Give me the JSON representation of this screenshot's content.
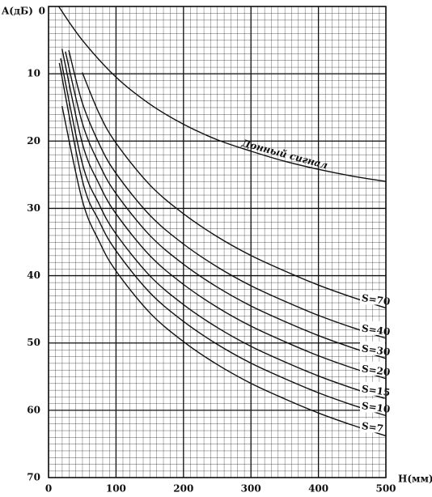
{
  "chart_data": {
    "type": "line",
    "x_label": "H(мм)",
    "y_label": "A(дБ)",
    "xlim": [
      0,
      500
    ],
    "xticks": [
      0,
      100,
      200,
      300,
      400,
      500
    ],
    "ylim": [
      70,
      0
    ],
    "yticks": [
      0,
      10,
      20,
      30,
      40,
      50,
      60,
      70
    ],
    "grid": true,
    "series": [
      {
        "name": "Донный сигнал",
        "color": "#111111",
        "x": [
          15,
          50,
          100,
          150,
          200,
          250,
          300,
          350,
          400,
          450,
          500
        ],
        "values": [
          0,
          5,
          10.5,
          14.5,
          17.5,
          19.8,
          21.5,
          23,
          24.2,
          25.2,
          26
        ]
      },
      {
        "name": "S=70",
        "color": "#111111",
        "x": [
          50,
          75,
          100,
          150,
          200,
          250,
          300,
          350,
          400,
          450,
          500
        ],
        "values": [
          9.8,
          15.9,
          20.3,
          26.5,
          30.8,
          34.2,
          37.0,
          39.3,
          41.4,
          43.2,
          44.8
        ]
      },
      {
        "name": "S=40",
        "color": "#111111",
        "x": [
          30,
          50,
          75,
          100,
          150,
          200,
          250,
          300,
          350,
          400,
          450,
          500
        ],
        "values": [
          6.5,
          14.3,
          20.4,
          24.8,
          31.0,
          35.3,
          38.7,
          41.5,
          43.8,
          45.9,
          47.7,
          49.3
        ]
      },
      {
        "name": "S=30",
        "color": "#111111",
        "x": [
          25,
          50,
          75,
          100,
          150,
          200,
          250,
          300,
          350,
          400,
          450,
          500
        ],
        "values": [
          6.7,
          17.3,
          23.4,
          27.8,
          34.0,
          38.3,
          41.7,
          44.5,
          46.8,
          48.9,
          50.7,
          52.3
        ]
      },
      {
        "name": "S=20",
        "color": "#111111",
        "x": [
          20,
          50,
          75,
          100,
          150,
          200,
          250,
          300,
          350,
          400,
          450,
          500
        ],
        "values": [
          6.3,
          20.3,
          26.4,
          30.8,
          37.0,
          41.3,
          44.7,
          47.5,
          49.8,
          51.9,
          53.7,
          55.3
        ]
      },
      {
        "name": "S=15",
        "color": "#111111",
        "x": [
          18,
          50,
          75,
          100,
          150,
          200,
          250,
          300,
          350,
          400,
          450,
          500
        ],
        "values": [
          7.7,
          23.3,
          29.4,
          33.8,
          40.0,
          44.3,
          47.7,
          50.5,
          52.8,
          54.9,
          56.7,
          58.3
        ]
      },
      {
        "name": "S=10",
        "color": "#111111",
        "x": [
          16,
          50,
          75,
          100,
          150,
          200,
          250,
          300,
          350,
          400,
          450,
          500
        ],
        "values": [
          8.4,
          25.8,
          31.9,
          36.3,
          42.5,
          46.8,
          50.2,
          53.0,
          55.3,
          57.4,
          59.2,
          60.8
        ]
      },
      {
        "name": "S=7",
        "color": "#111111",
        "x": [
          20,
          50,
          75,
          100,
          150,
          200,
          250,
          300,
          350,
          400,
          450,
          500
        ],
        "values": [
          14.8,
          28.8,
          34.9,
          39.3,
          45.5,
          49.8,
          53.2,
          56.0,
          58.3,
          60.4,
          62.2,
          63.8
        ]
      }
    ]
  }
}
